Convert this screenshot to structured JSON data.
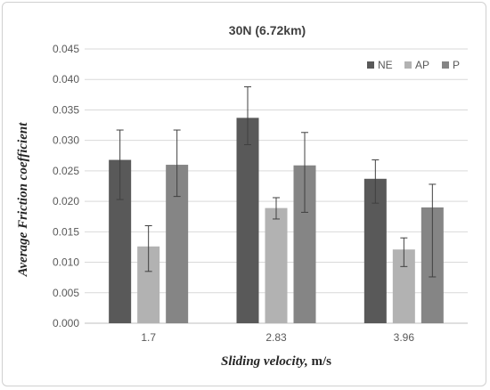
{
  "chart_data": {
    "type": "bar",
    "title": "30N (6.72km)",
    "xlabel": "Sliding velocity,",
    "xlabel_unit": "m/s",
    "ylabel": "Average Friction coefficient",
    "categories": [
      "1.7",
      "2.83",
      "3.96"
    ],
    "ylim": [
      0,
      0.045
    ],
    "yticks": [
      "0.000",
      "0.005",
      "0.010",
      "0.015",
      "0.020",
      "0.025",
      "0.030",
      "0.035",
      "0.040",
      "0.045"
    ],
    "grid": true,
    "legend_position": "top-right",
    "series": [
      {
        "name": "NE",
        "color": "#595959",
        "values": [
          0.0268,
          0.0337,
          0.0237
        ],
        "err_low": [
          0.0203,
          0.0293,
          0.0197
        ],
        "err_high": [
          0.0317,
          0.0388,
          0.0268
        ]
      },
      {
        "name": "AP",
        "color": "#b2b2b2",
        "values": [
          0.0126,
          0.0189,
          0.0121
        ],
        "err_low": [
          0.0085,
          0.0171,
          0.0093
        ],
        "err_high": [
          0.016,
          0.0206,
          0.014
        ]
      },
      {
        "name": "P",
        "color": "#858585",
        "values": [
          0.026,
          0.0259,
          0.019
        ],
        "err_low": [
          0.0208,
          0.0182,
          0.0076
        ],
        "err_high": [
          0.0317,
          0.0313,
          0.0228
        ]
      }
    ]
  }
}
